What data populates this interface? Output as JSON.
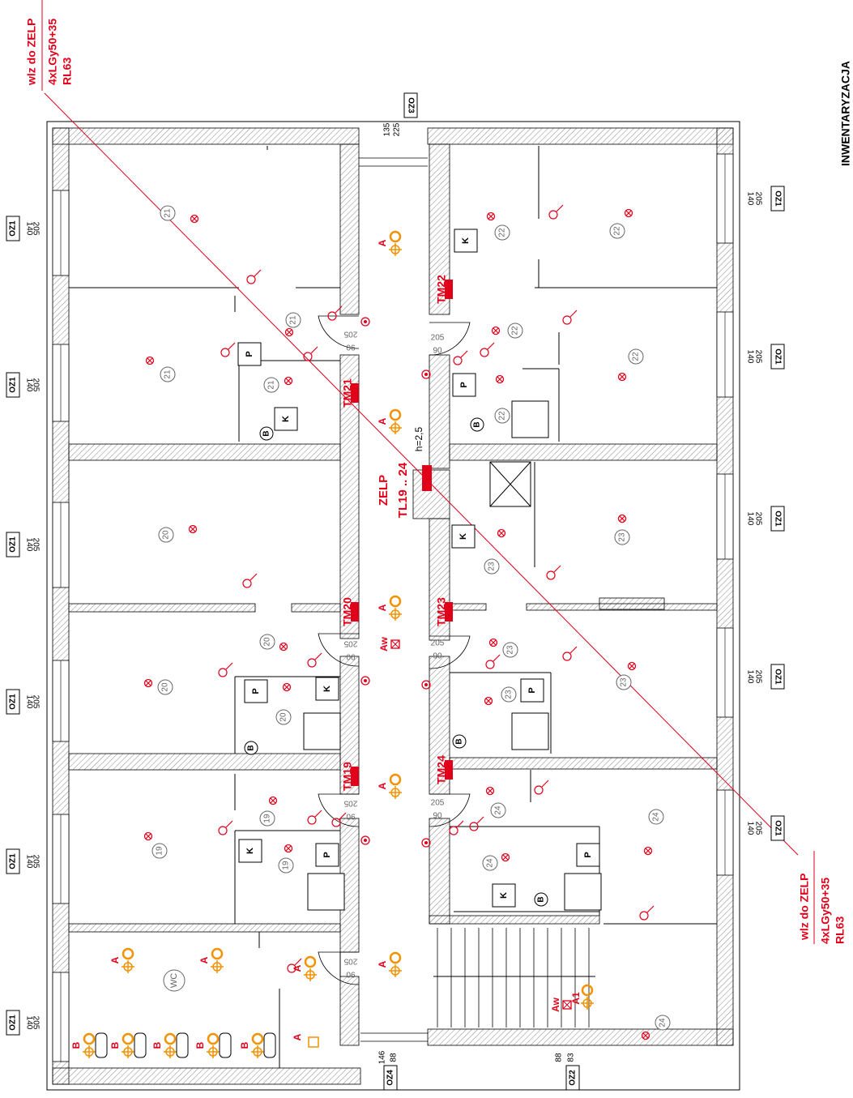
{
  "title": "INWENTARYZACJA",
  "cable_top": {
    "line1": "wlz do ZELP",
    "line2": "4xLGy50+35",
    "line3": "RL63"
  },
  "cable_bottom": {
    "line1": "wlz do ZELP",
    "line2": "4xLGy50+35",
    "line3": "RL63"
  },
  "panel": {
    "name": "ZELP",
    "circuits": "TL19 .. 24",
    "height": "h=2,5"
  },
  "tm": [
    "TM19",
    "TM20",
    "TM21",
    "TM22",
    "TM23",
    "TM24"
  ],
  "rooms": [
    "19",
    "20",
    "21",
    "22",
    "23",
    "24"
  ],
  "wc": "WC",
  "windows": {
    "oz1": "OZ1",
    "oz2": "OZ2",
    "oz3": "OZ3",
    "oz4": "OZ4"
  },
  "dims": {
    "w140": "140",
    "h205": "205",
    "d90": "90",
    "d135": "135",
    "d225": "225",
    "d146": "146",
    "d88": "88",
    "d83": "83"
  },
  "symbols": {
    "a": "A",
    "aw": "Aw",
    "a1": "A1",
    "b": "B",
    "k": "K",
    "p": "P"
  }
}
